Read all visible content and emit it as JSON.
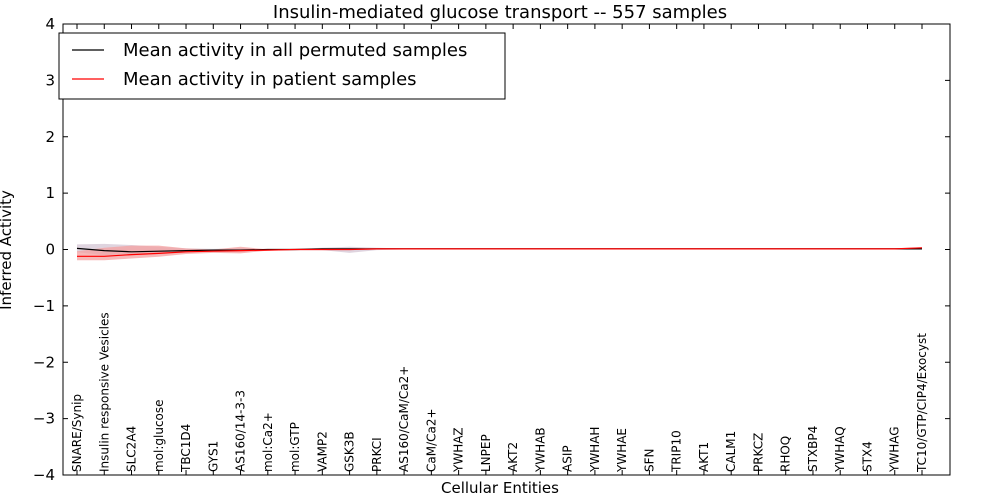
{
  "chart_data": {
    "type": "line",
    "title": "Insulin-mediated glucose transport -- 557 samples",
    "xlabel": "Cellular Entities",
    "ylabel": "Inferred Activity",
    "ylim": [
      -4,
      4
    ],
    "yticks": [
      -4,
      -3,
      -2,
      -1,
      0,
      1,
      2,
      3,
      4
    ],
    "ytick_labels": [
      "−4",
      "−3",
      "−2",
      "−1",
      "0",
      "1",
      "2",
      "3",
      "4"
    ],
    "legend": {
      "location": "top-left",
      "entries": [
        {
          "label": "Mean activity in all permuted samples",
          "color": "#000000"
        },
        {
          "label": "Mean activity in patient samples",
          "color": "#ff0000"
        }
      ]
    },
    "categories": [
      "SNARE/Synip",
      "Insulin responsive Vesicles",
      "SLC2A4",
      "mol:glucose",
      "TBC1D4",
      "GYS1",
      "AS160/14-3-3",
      "mol:Ca2+",
      "mol:GTP",
      "VAMP2",
      "GSK3B",
      "PRKCI",
      "AS160/CaM/Ca2+",
      "CaM/Ca2+",
      "YWHAZ",
      "LNPEP",
      "AKT2",
      "YWHAB",
      "ASIP",
      "YWHAH",
      "YWHAE",
      "SFN",
      "TRIP10",
      "AKT1",
      "CALM1",
      "PRKCZ",
      "RHOQ",
      "STXBP4",
      "YWHAQ",
      "STX4",
      "YWHAG",
      "TC10/GTP/CIP4/Exocyst"
    ],
    "series": [
      {
        "name": "Mean activity in all permuted samples",
        "color": "#000000",
        "band_color": "#c9b8c9",
        "values": [
          0.02,
          -0.02,
          -0.04,
          -0.03,
          -0.02,
          -0.01,
          -0.01,
          0.0,
          0.0,
          0.01,
          0.01,
          0.01,
          0.01,
          0.01,
          0.01,
          0.01,
          0.01,
          0.01,
          0.01,
          0.01,
          0.01,
          0.01,
          0.01,
          0.01,
          0.01,
          0.01,
          0.01,
          0.01,
          0.01,
          0.01,
          0.01,
          0.01
        ],
        "lower": [
          -0.05,
          -0.1,
          -0.08,
          -0.06,
          -0.04,
          -0.03,
          -0.05,
          -0.01,
          -0.01,
          -0.01,
          -0.06,
          -0.01,
          0.0,
          0.0,
          0.0,
          0.0,
          0.0,
          0.0,
          0.0,
          0.0,
          0.0,
          0.0,
          0.0,
          0.0,
          0.0,
          0.0,
          0.0,
          0.0,
          0.0,
          0.0,
          0.0,
          0.0
        ],
        "upper": [
          0.09,
          0.1,
          0.08,
          0.05,
          0.02,
          0.01,
          0.02,
          0.01,
          0.01,
          0.03,
          0.05,
          0.03,
          0.02,
          0.02,
          0.02,
          0.02,
          0.02,
          0.02,
          0.02,
          0.02,
          0.02,
          0.02,
          0.02,
          0.02,
          0.02,
          0.02,
          0.02,
          0.02,
          0.02,
          0.02,
          0.02,
          0.02
        ]
      },
      {
        "name": "Mean activity in patient samples",
        "color": "#ff0000",
        "band_color": "#f4a0a0",
        "values": [
          -0.12,
          -0.12,
          -0.09,
          -0.07,
          -0.04,
          -0.03,
          -0.02,
          -0.01,
          0.0,
          0.0,
          0.0,
          0.01,
          0.01,
          0.01,
          0.01,
          0.01,
          0.01,
          0.01,
          0.01,
          0.01,
          0.01,
          0.01,
          0.01,
          0.01,
          0.01,
          0.01,
          0.01,
          0.01,
          0.01,
          0.01,
          0.01,
          0.03
        ],
        "lower": [
          -0.19,
          -0.19,
          -0.16,
          -0.13,
          -0.08,
          -0.06,
          -0.07,
          -0.02,
          -0.01,
          -0.01,
          -0.01,
          0.0,
          0.0,
          0.0,
          0.0,
          0.0,
          0.0,
          0.0,
          0.0,
          0.0,
          0.0,
          0.0,
          0.0,
          0.0,
          0.0,
          0.0,
          0.0,
          0.0,
          0.0,
          0.0,
          0.0,
          0.01
        ],
        "upper": [
          -0.03,
          0.03,
          0.07,
          0.07,
          0.02,
          0.0,
          0.05,
          0.0,
          0.01,
          0.01,
          0.01,
          0.02,
          0.02,
          0.02,
          0.02,
          0.02,
          0.02,
          0.02,
          0.02,
          0.02,
          0.02,
          0.02,
          0.02,
          0.02,
          0.02,
          0.02,
          0.02,
          0.02,
          0.02,
          0.02,
          0.02,
          0.04
        ]
      }
    ]
  }
}
